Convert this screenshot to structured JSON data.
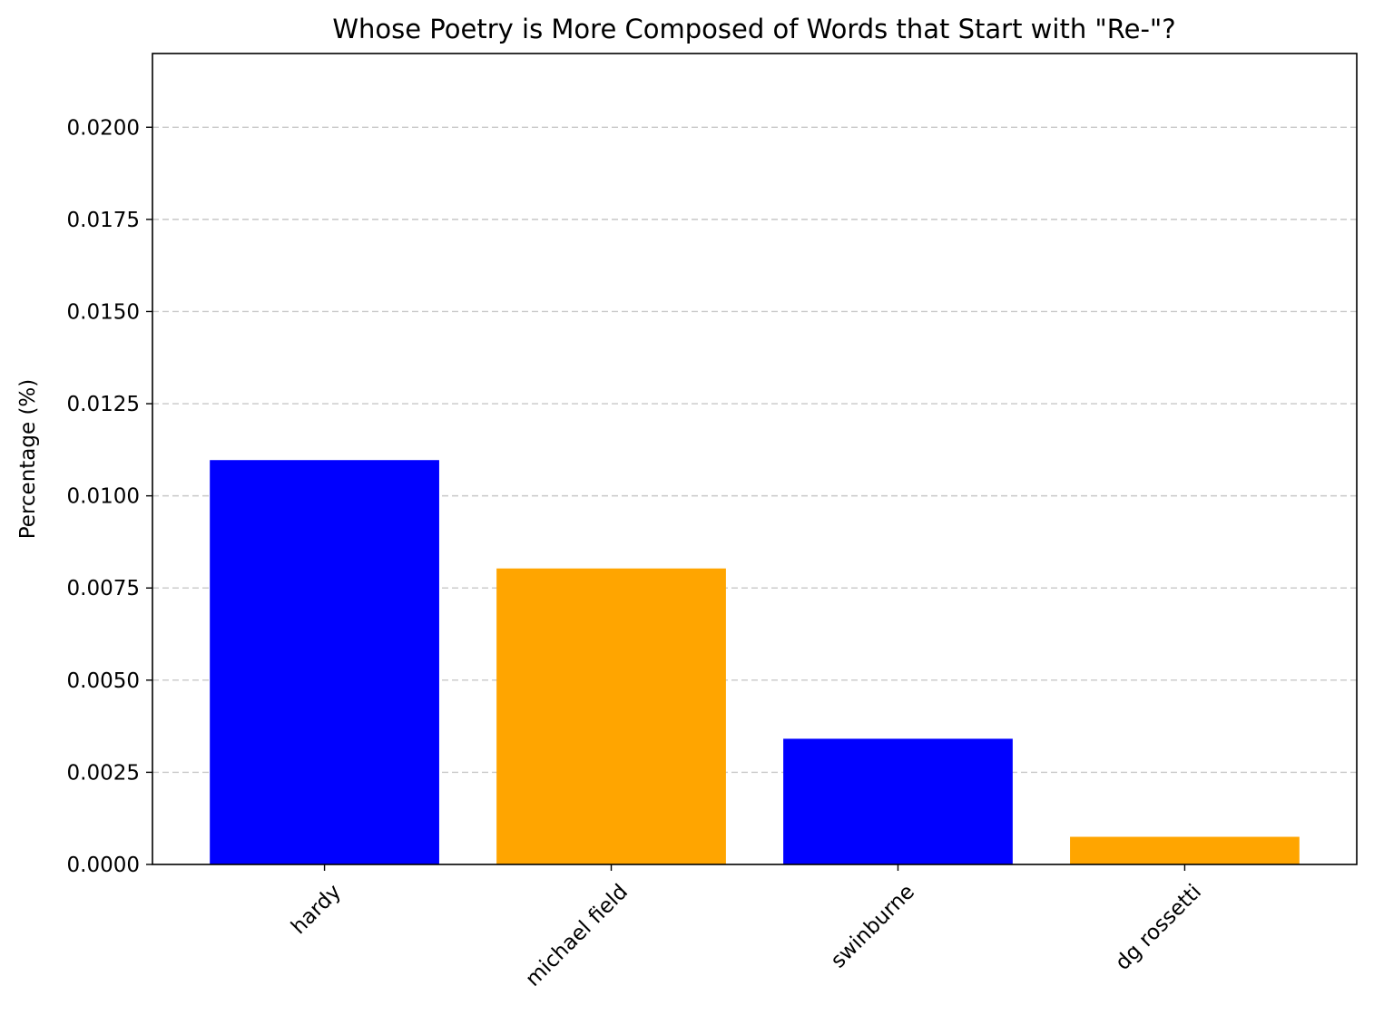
{
  "chart_data": {
    "type": "bar",
    "title": "Whose Poetry is More Composed of Words that Start with \"Re-\"?",
    "xlabel": "",
    "ylabel": "Percentage (%)",
    "categories": [
      "hardy",
      "michael field",
      "swinburne",
      "dg rossetti"
    ],
    "values": [
      0.01097,
      0.00803,
      0.00341,
      0.00075
    ],
    "bar_colors": [
      "#0000ff",
      "#ffa500",
      "#0000ff",
      "#ffa500"
    ],
    "ylim": [
      0,
      0.022
    ],
    "yticks": [
      "0.0000",
      "0.0025",
      "0.0050",
      "0.0075",
      "0.0100",
      "0.0125",
      "0.0150",
      "0.0175",
      "0.0200"
    ],
    "grid": "y-dashed",
    "grid_color": "#c8c8c8",
    "legend": "none"
  }
}
